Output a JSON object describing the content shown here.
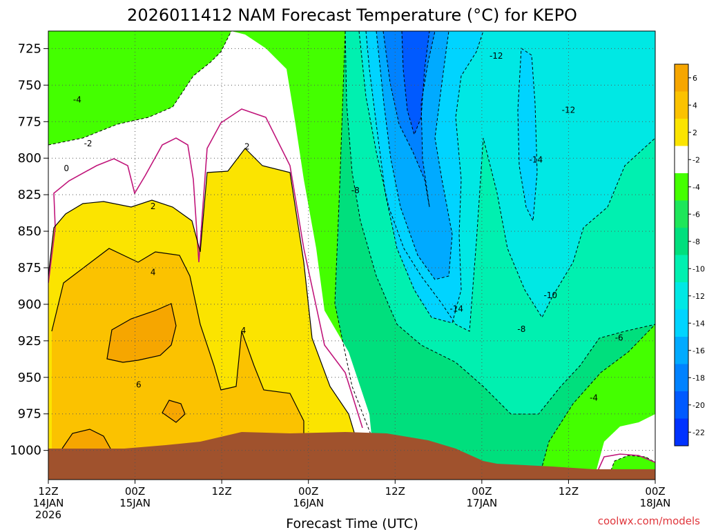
{
  "chart_data": {
    "type": "heatmap",
    "title": "2026011412 NAM Forecast Temperature (°C) for KEPO",
    "xlabel": "Forecast Time (UTC)",
    "ylabel": "",
    "x_ticks": [
      {
        "lines": [
          "12Z",
          "14JAN",
          "2026"
        ],
        "hours": 0
      },
      {
        "lines": [
          "00Z",
          "15JAN"
        ],
        "hours": 12
      },
      {
        "lines": [
          "12Z"
        ],
        "hours": 24
      },
      {
        "lines": [
          "00Z",
          "16JAN"
        ],
        "hours": 36
      },
      {
        "lines": [
          "12Z"
        ],
        "hours": 48
      },
      {
        "lines": [
          "00Z",
          "17JAN"
        ],
        "hours": 60
      },
      {
        "lines": [
          "12Z"
        ],
        "hours": 72
      },
      {
        "lines": [
          "00Z",
          "18JAN"
        ],
        "hours": 84
      }
    ],
    "x_range_hours": [
      0,
      84
    ],
    "y_ticks": [
      "725",
      "750",
      "775",
      "800",
      "825",
      "850",
      "875",
      "900",
      "925",
      "950",
      "975",
      "1000"
    ],
    "y_range_hpa": [
      713,
      1020
    ],
    "grid": true,
    "colorbar": {
      "placement": "right",
      "levels": [
        8,
        6,
        4,
        2,
        0,
        -2,
        -4,
        -6,
        -8,
        -10,
        -12,
        -14,
        -16,
        -18,
        -20,
        -22,
        -24
      ],
      "labels": [
        "6",
        "4",
        "2",
        "-2",
        "-4",
        "-6",
        "-8",
        "-10",
        "-12",
        "-14",
        "-16",
        "-18",
        "-20",
        "-22"
      ],
      "colors": [
        "#f6a600",
        "#fbc200",
        "#fbe400",
        "#ffffff",
        "#44ff00",
        "#1ee65a",
        "#00df7d",
        "#00f0b0",
        "#00e8e4",
        "#00d4ff",
        "#00aaff",
        "#0082ff",
        "#005aff",
        "#0032ff"
      ]
    },
    "contour_labels": [
      {
        "text": "-4",
        "hours": 4,
        "hpa": 760
      },
      {
        "text": "-2",
        "hours": 5.5,
        "hpa": 790
      },
      {
        "text": "0",
        "hours": 2.5,
        "hpa": 807
      },
      {
        "text": "2",
        "hours": 14.5,
        "hpa": 833
      },
      {
        "text": "4",
        "hours": 14.5,
        "hpa": 878
      },
      {
        "text": "6",
        "hours": 12.5,
        "hpa": 955
      },
      {
        "text": "2",
        "hours": 27.5,
        "hpa": 792
      },
      {
        "text": "4",
        "hours": 27,
        "hpa": 918
      },
      {
        "text": "-8",
        "hours": 42.5,
        "hpa": 822
      },
      {
        "text": "-12",
        "hours": 62,
        "hpa": 730
      },
      {
        "text": "-12",
        "hours": 72,
        "hpa": 767
      },
      {
        "text": "-14",
        "hours": 67.5,
        "hpa": 801
      },
      {
        "text": "-14",
        "hours": 56.5,
        "hpa": 903
      },
      {
        "text": "-10",
        "hours": 69.5,
        "hpa": 894
      },
      {
        "text": "-8",
        "hours": 65.5,
        "hpa": 917
      },
      {
        "text": "-6",
        "hours": 79,
        "hpa": 923
      },
      {
        "text": "-4",
        "hours": 75.5,
        "hpa": 964
      }
    ]
  },
  "credit": "coolwx.com/models"
}
